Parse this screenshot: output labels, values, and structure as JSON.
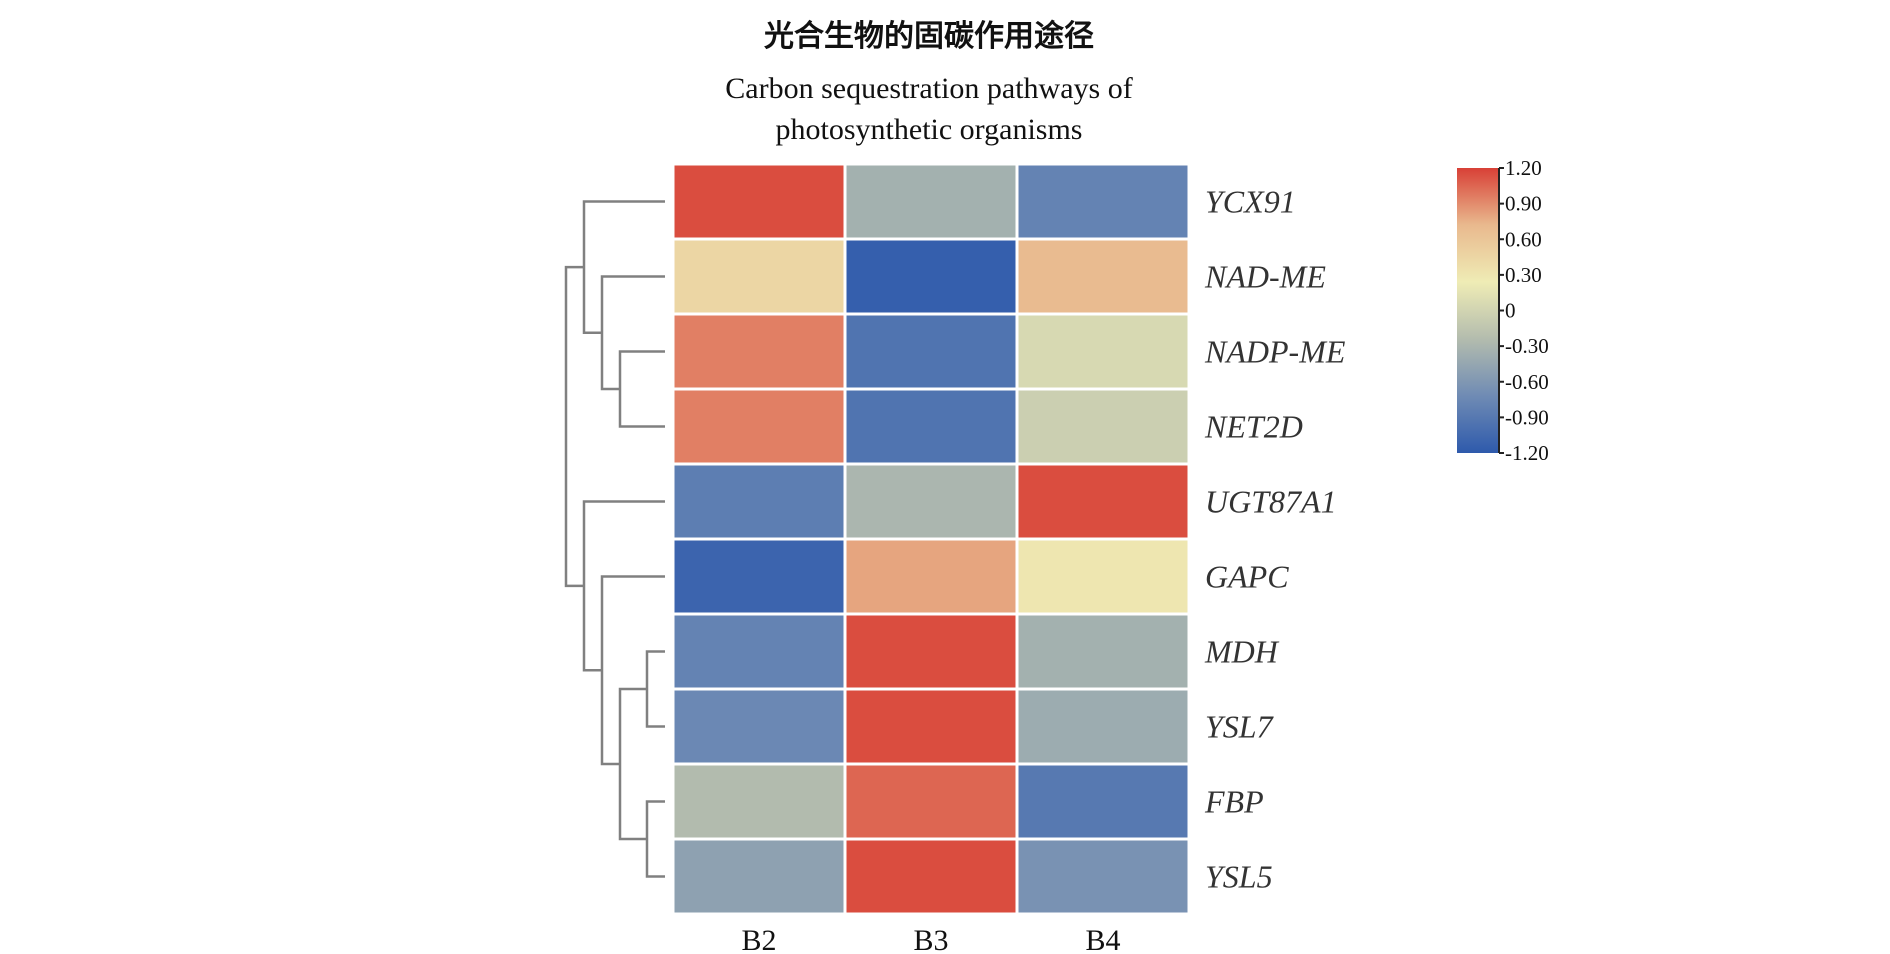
{
  "chart_data": {
    "type": "heatmap",
    "title": "光合生物的固碳作用途径",
    "subtitle_lines": [
      "Carbon sequestration pathways of",
      "photosynthetic organisms"
    ],
    "columns": [
      "B2",
      "B3",
      "B4"
    ],
    "rows": [
      "YCX91",
      "NAD-ME",
      "NADP-ME",
      "NET2D",
      "UGT87A1",
      "GAPC",
      "MDH",
      "YSL7",
      "FBP",
      "YSL5"
    ],
    "values": [
      [
        1.15,
        -0.35,
        -0.8
      ],
      [
        0.45,
        -1.15,
        0.7
      ],
      [
        0.95,
        -0.95,
        0.05
      ],
      [
        0.95,
        -0.95,
        -0.05
      ],
      [
        -0.85,
        -0.3,
        1.15
      ],
      [
        -1.1,
        0.8,
        0.3
      ],
      [
        -0.8,
        1.15,
        -0.35
      ],
      [
        -0.75,
        1.15,
        -0.4
      ],
      [
        -0.25,
        1.05,
        -0.9
      ],
      [
        -0.5,
        1.15,
        -0.65
      ]
    ],
    "colorbar": {
      "ticks": [
        "1.20",
        "0.90",
        "0.60",
        "0.30",
        "0",
        "-0.30",
        "-0.60",
        "-0.90",
        "-1.20"
      ],
      "range": [
        -1.2,
        1.2
      ],
      "colors": [
        "#2e5aac",
        "#6f8bb4",
        "#b3bcae",
        "#efecb5",
        "#e9b98e",
        "#d84036"
      ]
    },
    "row_dendrogram": {
      "merges": [
        [
          2,
          3,
          0.25
        ],
        [
          1,
          10,
          0.35
        ],
        [
          8,
          9,
          0.1
        ],
        [
          6,
          7,
          0.1
        ],
        [
          12,
          13,
          0.25
        ],
        [
          5,
          14,
          0.35
        ],
        [
          0,
          11,
          0.45
        ],
        [
          4,
          15,
          0.45
        ],
        [
          16,
          17,
          0.55
        ]
      ]
    }
  }
}
